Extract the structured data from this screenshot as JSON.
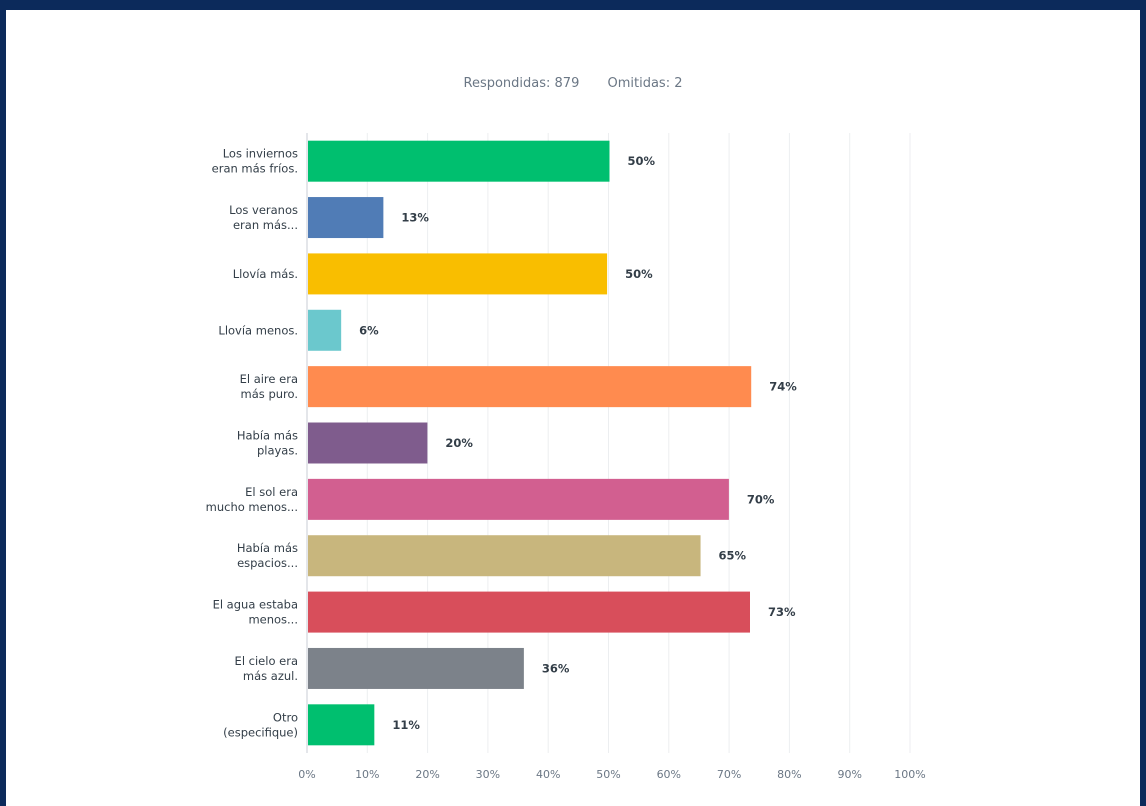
{
  "summary": {
    "answered": "Respondidas: 879",
    "skipped": "Omitidas: 2"
  },
  "chart_data": {
    "type": "bar",
    "orientation": "horizontal",
    "title": "",
    "xlabel": "",
    "ylabel": "",
    "xlim": [
      0,
      100
    ],
    "grid": true,
    "ticks": [
      "0%",
      "10%",
      "20%",
      "30%",
      "40%",
      "50%",
      "60%",
      "70%",
      "80%",
      "90%",
      "100%"
    ],
    "categories": [
      [
        "Los inviernos",
        "eran más fríos."
      ],
      [
        "Los veranos",
        "eran más..."
      ],
      [
        "Llovía más."
      ],
      [
        "Llovía menos."
      ],
      [
        "El aire era",
        "más puro."
      ],
      [
        "Había más",
        "playas."
      ],
      [
        "El sol era",
        "mucho menos..."
      ],
      [
        "Había más",
        "espacios..."
      ],
      [
        "El agua estaba",
        "menos..."
      ],
      [
        "El cielo era",
        "más azul."
      ],
      [
        "Otro",
        "(especifique)"
      ]
    ],
    "values": [
      50,
      12.5,
      49.6,
      5.5,
      73.5,
      19.8,
      69.8,
      65.1,
      73.3,
      35.8,
      11
    ],
    "value_labels": [
      "50%",
      "13%",
      "50%",
      "6%",
      "74%",
      "20%",
      "70%",
      "65%",
      "73%",
      "36%",
      "11%"
    ],
    "colors": [
      "#00bf6f",
      "#507cb6",
      "#f9be00",
      "#6bc8cd",
      "#ff8b4f",
      "#7f5c8d",
      "#d25f90",
      "#c8b67d",
      "#d84e5b",
      "#7c828a",
      "#00bf6f"
    ]
  }
}
